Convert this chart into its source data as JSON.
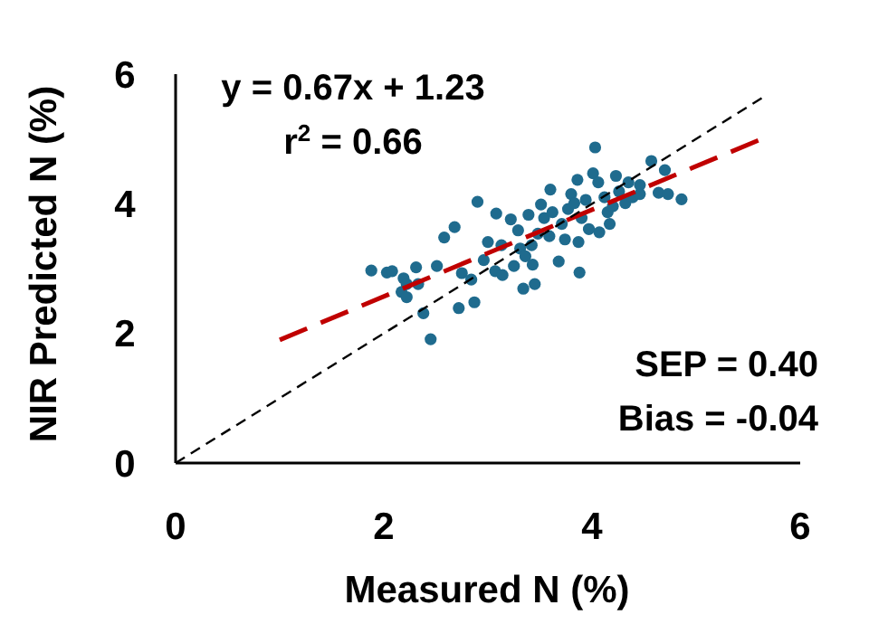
{
  "chart_data": {
    "type": "scatter",
    "xlabel": "Measured N (%)",
    "ylabel": "NIR Predicted N (%)",
    "xlim": [
      0,
      6
    ],
    "ylim": [
      0,
      6
    ],
    "xticks": [
      0,
      2,
      4,
      6
    ],
    "yticks": [
      0,
      2,
      4,
      6
    ],
    "grid": false,
    "marker": "circle",
    "annotations": [
      "y = 0.67x + 1.23",
      "r$^{2}$ = 0.66",
      "SEP = 0.40",
      "Bias = -0.04"
    ],
    "series": [
      {
        "color": "#1f6b8e",
        "x": [
          1.88,
          2.03,
          2.08,
          2.19,
          2.22,
          2.31,
          2.33,
          2.17,
          2.22,
          2.38,
          2.45,
          2.51,
          2.58,
          2.68,
          2.72,
          2.87,
          2.9,
          2.75,
          2.84,
          2.96,
          3.0,
          3.08,
          3.13,
          3.07,
          3.14,
          3.22,
          3.25,
          3.29,
          3.34,
          3.39,
          3.42,
          3.45,
          3.43,
          3.48,
          3.54,
          3.59,
          3.6,
          3.62,
          3.68,
          3.71,
          3.77,
          3.8,
          3.86,
          3.87,
          3.88,
          3.9,
          3.94,
          3.97,
          4.03,
          4.01,
          4.06,
          4.07,
          4.12,
          4.15,
          4.17,
          4.23,
          4.26,
          4.32,
          4.35,
          4.39,
          4.46,
          4.57,
          4.64,
          4.7,
          4.73,
          4.86,
          4.46,
          3.83,
          3.74,
          3.31,
          3.51,
          4.2,
          3.36
        ],
        "values": [
          2.97,
          2.94,
          2.96,
          2.85,
          2.76,
          3.02,
          2.76,
          2.64,
          2.56,
          2.31,
          1.91,
          3.04,
          3.48,
          3.64,
          2.39,
          2.48,
          4.03,
          2.93,
          2.83,
          3.13,
          3.41,
          3.85,
          3.36,
          2.96,
          2.9,
          3.76,
          3.04,
          3.59,
          2.69,
          3.83,
          3.36,
          2.76,
          3.06,
          3.54,
          3.78,
          3.5,
          4.22,
          3.87,
          3.11,
          3.69,
          3.92,
          4.15,
          4.37,
          3.41,
          2.94,
          3.78,
          4.06,
          3.61,
          4.87,
          4.47,
          4.33,
          3.56,
          4.1,
          3.87,
          3.69,
          4.43,
          4.19,
          4.01,
          4.33,
          4.1,
          4.15,
          4.66,
          4.17,
          4.52,
          4.15,
          4.07,
          4.29,
          4.01,
          3.45,
          3.31,
          3.99,
          3.96,
          3.19
        ]
      },
      {
        "type": "line",
        "color": "#c00000",
        "line_style": "dashed",
        "marker": "none",
        "x": [
          1.0,
          5.6
        ],
        "values": [
          1.9,
          4.98
        ]
      },
      {
        "type": "line",
        "color": "#000000",
        "line_style": "dotted",
        "marker": "none",
        "x": [
          0,
          5.63
        ],
        "values": [
          0,
          5.63
        ]
      }
    ]
  }
}
